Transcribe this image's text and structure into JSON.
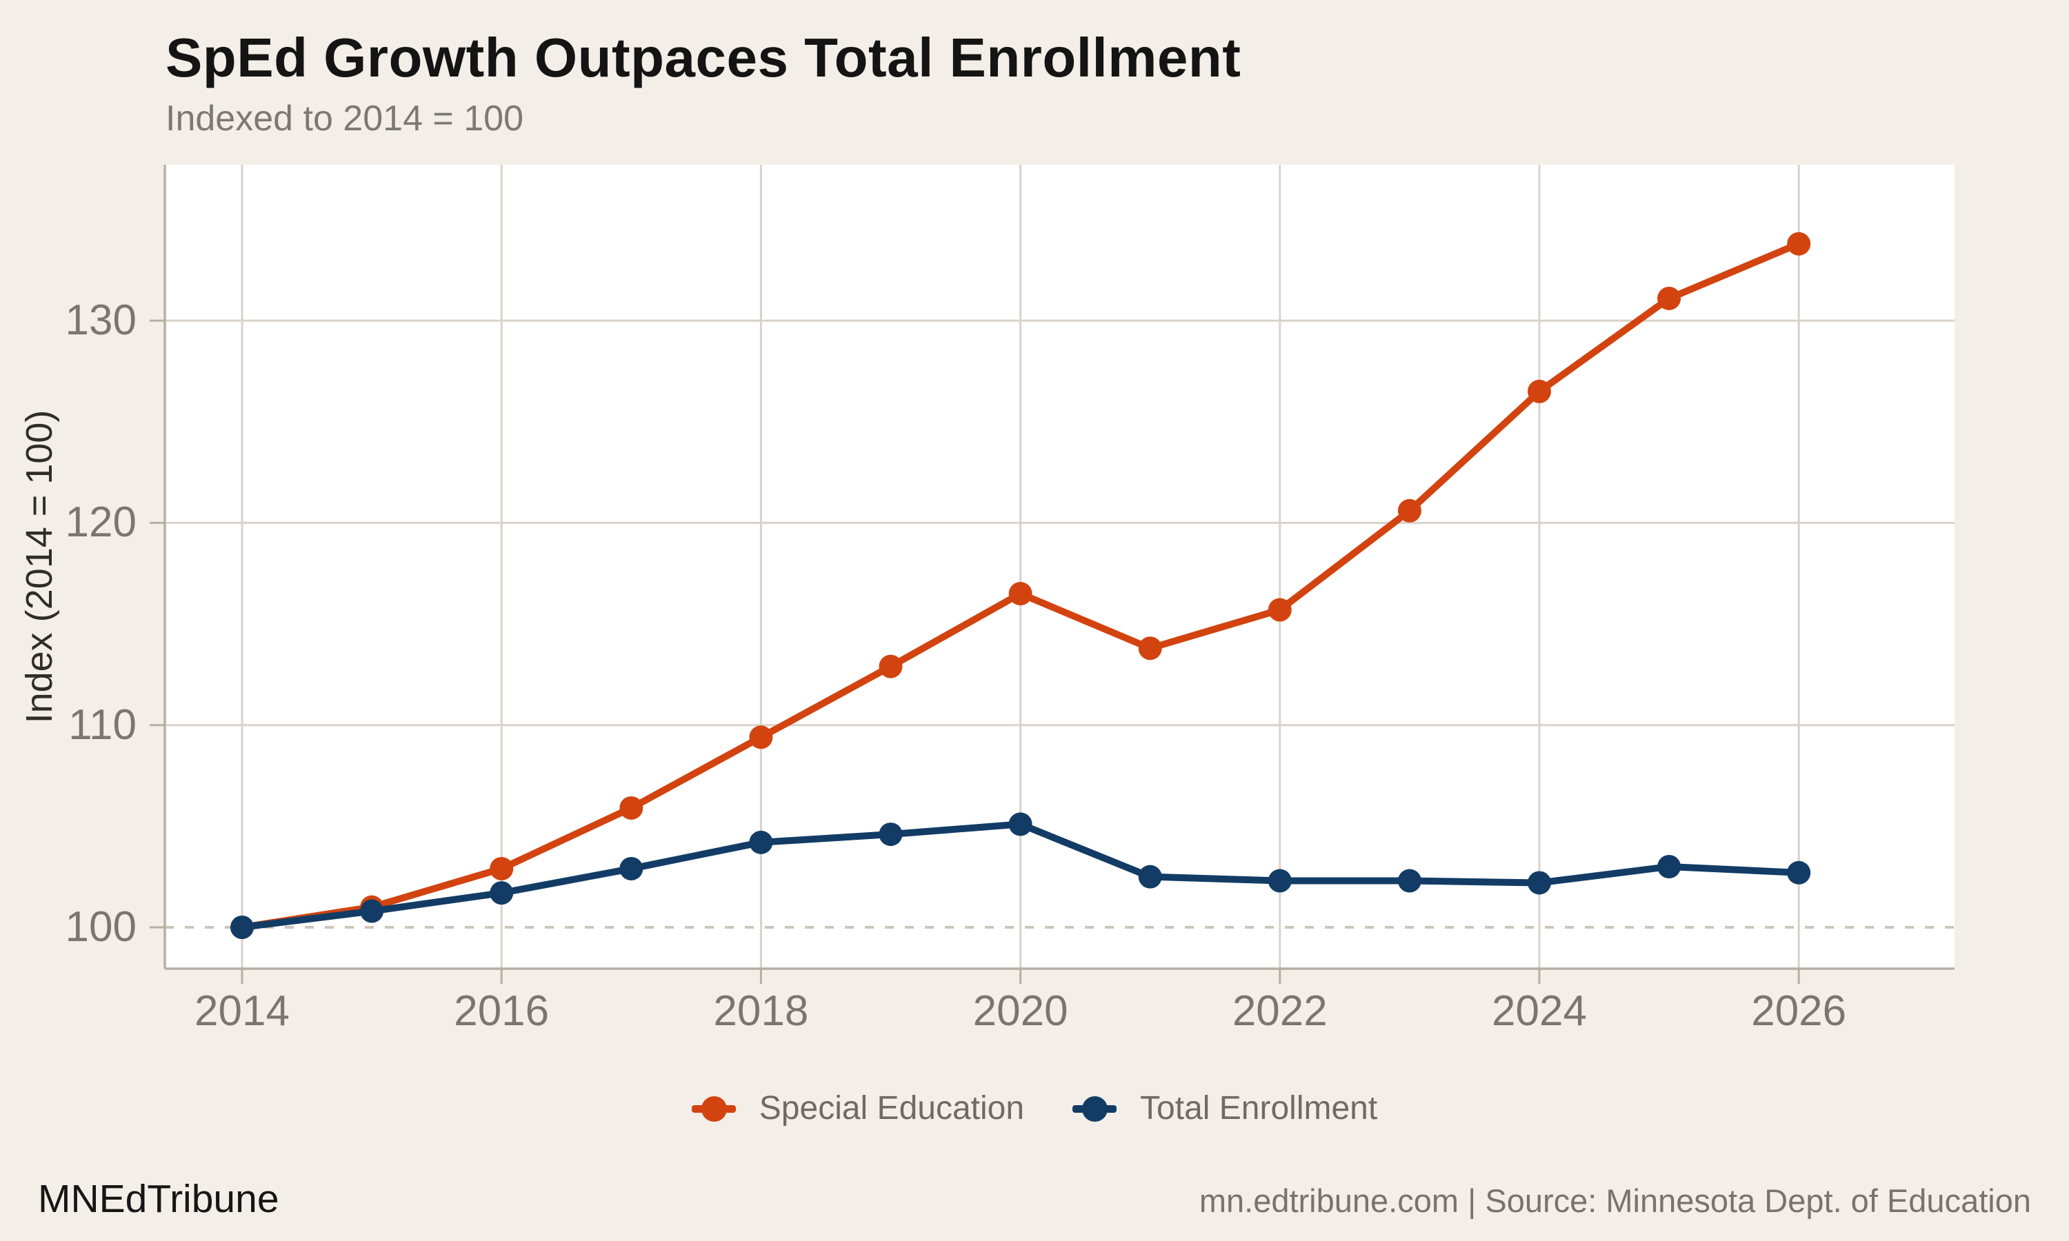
{
  "header": {
    "title": "SpEd Growth Outpaces Total Enrollment",
    "subtitle": "Indexed to 2014 = 100"
  },
  "chart_data": {
    "type": "line",
    "x": [
      2014,
      2015,
      2016,
      2017,
      2018,
      2019,
      2020,
      2021,
      2022,
      2023,
      2024,
      2025,
      2026
    ],
    "x_tick_labels": [
      "2014",
      "2016",
      "2018",
      "2020",
      "2022",
      "2024",
      "2026"
    ],
    "y_ticks": [
      100,
      110,
      120,
      130
    ],
    "ylim": [
      97.9,
      137.9
    ],
    "xlabel": "",
    "ylabel": "Index (2014 = 100)",
    "reference_line_y": 100,
    "grid": true,
    "legend_position": "bottom",
    "series": [
      {
        "name": "Special Education",
        "color": "#d2430f",
        "values": [
          100,
          101.0,
          102.9,
          105.9,
          109.4,
          112.9,
          116.5,
          113.8,
          115.7,
          120.6,
          126.5,
          131.1,
          133.8
        ]
      },
      {
        "name": "Total Enrollment",
        "color": "#123c66",
        "values": [
          100,
          100.8,
          101.7,
          102.9,
          104.2,
          104.6,
          105.1,
          102.5,
          102.3,
          102.3,
          102.2,
          103.0,
          102.7
        ]
      }
    ]
  },
  "footer": {
    "brand": "MNEdTribune",
    "source": "mn.edtribune.com | Source: Minnesota Dept. of Education"
  },
  "colors": {
    "background": "#f3efe8",
    "panel": "#ffffff",
    "gridline": "#d8d2c8",
    "axis_line": "#b5aea3",
    "reference_dash": "#ccc6ba",
    "title_text": "#141414",
    "muted_text": "#7b766d"
  }
}
